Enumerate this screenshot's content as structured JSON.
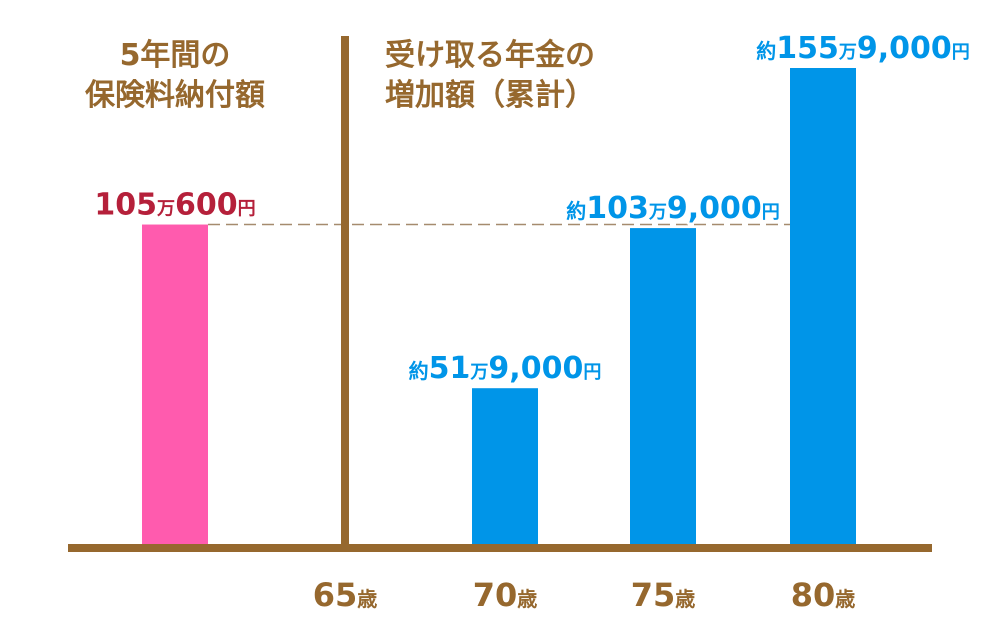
{
  "colors": {
    "premium": "#ff5bae",
    "pension": "#0095e8",
    "axis": "#96682e",
    "premium_label": "#b5203a",
    "pension_label": "#0095e8",
    "tick_label": "#96682e",
    "dashed_line": "#a58b6e"
  },
  "headings": {
    "left": [
      "5年間の",
      "保険料納付額"
    ],
    "right": [
      "受け取る年金の",
      "増加額（累計）"
    ]
  },
  "chart_data": {
    "type": "bar",
    "unit": "円",
    "categories": [
      "",
      "65歳",
      "70歳",
      "75歳",
      "80歳"
    ],
    "series": [
      {
        "key": "premium",
        "points": [
          {
            "category_index": 0,
            "value": 1050600,
            "label": {
              "prefix": "",
              "num": "105",
              "man": "万",
              "rest": "600",
              "yen": "円"
            }
          }
        ]
      },
      {
        "key": "pension",
        "points": [
          {
            "category_index": 2,
            "value": 519000,
            "label": {
              "prefix": "約",
              "num": "51",
              "man": "万",
              "rest": "9,000",
              "yen": "円"
            }
          },
          {
            "category_index": 3,
            "value": 1039000,
            "label": {
              "prefix": "約",
              "num": "103",
              "man": "万",
              "rest": "9,000",
              "yen": "円"
            }
          },
          {
            "category_index": 4,
            "value": 1559000,
            "label": {
              "prefix": "約",
              "num": "155",
              "man": "万",
              "rest": "9,000",
              "yen": "円"
            }
          }
        ]
      }
    ],
    "tick_labels": [
      {
        "category_index": 1,
        "num": "65",
        "suffix": "歳"
      },
      {
        "category_index": 2,
        "num": "70",
        "suffix": "歳"
      },
      {
        "category_index": 3,
        "num": "75",
        "suffix": "歳"
      },
      {
        "category_index": 4,
        "num": "80",
        "suffix": "歳"
      }
    ],
    "reference_line": {
      "value": 1050600,
      "style": "dashed"
    },
    "divider_after_category": 1
  }
}
